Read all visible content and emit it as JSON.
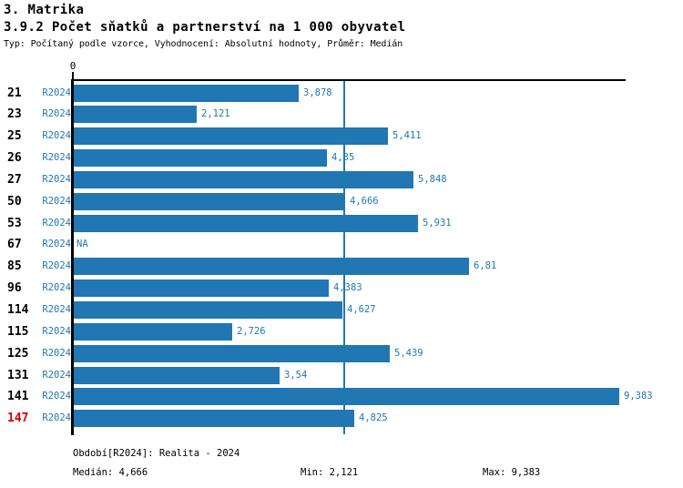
{
  "header": {
    "title1": "3. Matrika",
    "title2": "3.9.2 Počet sňatků a partnerství na 1 000 obyvatel",
    "subtitle": "Typ: Počítaný podle vzorce, Vyhodnocení: Absolutní hodnoty, Průměr: Medián"
  },
  "chart_data": {
    "type": "bar",
    "orientation": "horizontal",
    "title": "3.9.2 Počet sňatků a partnerství na 1 000 obyvatel",
    "period": "R2024",
    "categories": [
      "21",
      "23",
      "25",
      "26",
      "27",
      "50",
      "53",
      "67",
      "85",
      "96",
      "114",
      "115",
      "125",
      "131",
      "141",
      "147"
    ],
    "values": [
      3.878,
      2.121,
      5.411,
      4.35,
      5.848,
      4.666,
      5.931,
      null,
      6.81,
      4.383,
      4.627,
      2.726,
      5.439,
      3.54,
      9.383,
      4.825
    ],
    "value_labels": [
      "3,878",
      "2,121",
      "5,411",
      "4,35",
      "5,848",
      "4,666",
      "5,931",
      "NA",
      "6,81",
      "4,383",
      "4,627",
      "2,726",
      "5,439",
      "3,54",
      "9,383",
      "4,825"
    ],
    "highlighted_category": "147",
    "axis_zero_label": "0",
    "xlim": [
      0,
      9.5
    ],
    "median": 4.666,
    "min": 2.121,
    "max": 9.383,
    "median_line": true,
    "grid": false,
    "legend": false
  },
  "footer": {
    "period_line": "Období[R2024]: Realita - 2024",
    "median_label": "Medián: 4,666",
    "min_label": "Min: 2,121",
    "max_label": "Max: 9,383"
  },
  "colors": {
    "bar": "#2077b4",
    "blue_text": "#1f77b4",
    "highlight_red": "#d40000",
    "axis": "#000000"
  }
}
